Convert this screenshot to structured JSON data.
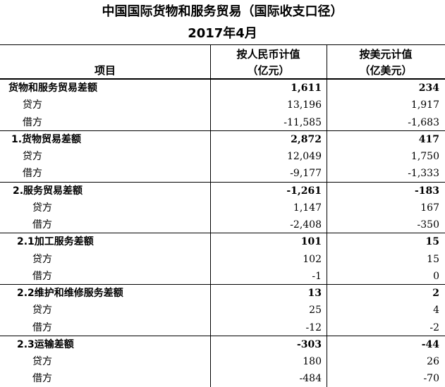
{
  "title": {
    "line1": "中国国际货物和服务贸易（国际收支口径）",
    "line2": "2017年4月"
  },
  "header": {
    "item": "项目",
    "rmb": [
      "按人民币计值",
      "（亿元）"
    ],
    "usd": [
      "按美元计值",
      "（亿美元）"
    ]
  },
  "groups": [
    {
      "rows": [
        [
          "货物和服务贸易差额",
          "1,611",
          "234"
        ],
        [
          "贷方",
          "13,196",
          "1,917"
        ],
        [
          "借方",
          "-11,585",
          "-1,683"
        ]
      ]
    },
    {
      "rows": [
        [
          "1.货物贸易差额",
          "2,872",
          "417"
        ],
        [
          "贷方",
          "12,049",
          "1,750"
        ],
        [
          "借方",
          "-9,177",
          "-1,333"
        ]
      ]
    },
    {
      "rows": [
        [
          "2.服务贸易差额",
          "-1,261",
          "-183"
        ],
        [
          "贷方",
          "1,147",
          "167"
        ],
        [
          "借方",
          "-2,408",
          "-350"
        ]
      ]
    },
    {
      "rows": [
        [
          "2.1加工服务差额",
          "101",
          "15"
        ],
        [
          "贷方",
          "102",
          "15"
        ],
        [
          "借方",
          "-1",
          "0"
        ]
      ]
    },
    {
      "rows": [
        [
          "2.2维护和维修服务差额",
          "13",
          "2"
        ],
        [
          "贷方",
          "25",
          "4"
        ],
        [
          "借方",
          "-12",
          "-2"
        ]
      ]
    },
    {
      "rows": [
        [
          "2.3运输差额",
          "-303",
          "-44"
        ],
        [
          "贷方",
          "180",
          "26"
        ],
        [
          "借方",
          "-484",
          "-70"
        ]
      ]
    }
  ]
}
